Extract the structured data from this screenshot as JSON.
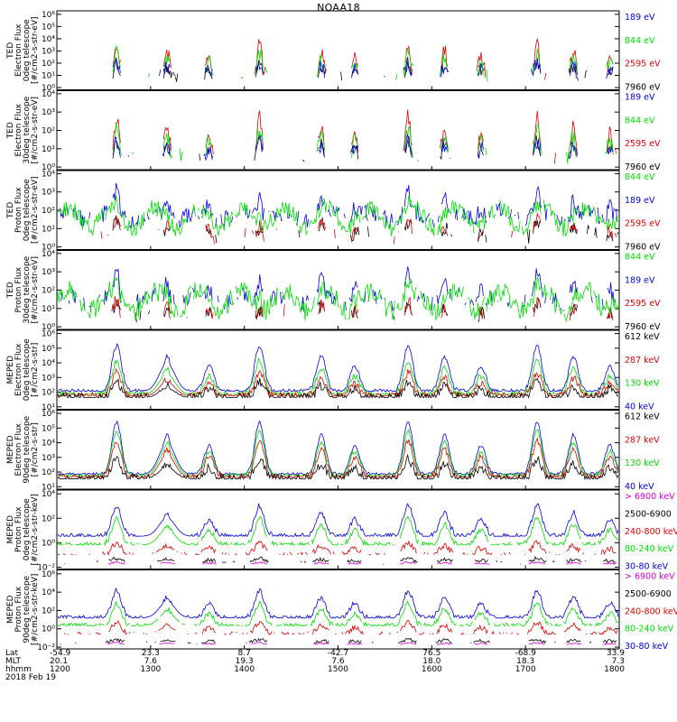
{
  "title": "NOAA18",
  "colors": {
    "black": "#000000",
    "red": "#e00000",
    "green": "#00e000",
    "blue": "#0000e0",
    "magenta": "#e000e0"
  },
  "chart_data": [
    {
      "type": "line",
      "panel": "TED electron 0deg",
      "ylabel": [
        "TED",
        "Electron Flux",
        "0deg telescope",
        "[#/cm2-s-str-eV]"
      ],
      "yticks": [
        "10⁰",
        "10¹",
        "10²",
        "10³",
        "10⁴",
        "10⁵",
        "10⁶"
      ],
      "ylog": [
        0,
        6
      ],
      "series": [
        {
          "name": "7960 eV",
          "color": "black",
          "baseline": 1.0,
          "amp": 1.0,
          "noise": 0.5,
          "density": 0.35
        },
        {
          "name": "2595 eV",
          "color": "red",
          "baseline": 1.0,
          "amp": 2.6,
          "noise": 0.6,
          "density": 0.3
        },
        {
          "name": "844 eV",
          "color": "green",
          "baseline": 1.0,
          "amp": 1.8,
          "noise": 0.6,
          "density": 0.3
        },
        {
          "name": "189 eV",
          "color": "blue",
          "baseline": 1.0,
          "amp": 1.0,
          "noise": 0.5,
          "density": 0.2
        }
      ]
    },
    {
      "type": "line",
      "panel": "TED electron 30deg",
      "ylabel": [
        "TED",
        "Electron Flux",
        "30deg telescope",
        "[#/cm2-s-str-eV]"
      ],
      "yticks": [
        "10⁰",
        "10¹",
        "10²",
        "10³",
        "10⁴"
      ],
      "ylog": [
        0,
        4.5
      ],
      "series": [
        {
          "name": "7960 eV",
          "color": "black",
          "baseline": 0.7,
          "amp": 1.0,
          "noise": 0.4,
          "density": 0.3
        },
        {
          "name": "2595 eV",
          "color": "red",
          "baseline": 0.7,
          "amp": 2.4,
          "noise": 0.5,
          "density": 0.3
        },
        {
          "name": "844 eV",
          "color": "green",
          "baseline": 0.7,
          "amp": 1.6,
          "noise": 0.5,
          "density": 0.3
        },
        {
          "name": "189 eV",
          "color": "blue",
          "baseline": 0.7,
          "amp": 1.0,
          "noise": 0.5,
          "density": 0.15
        }
      ]
    },
    {
      "type": "line",
      "panel": "TED proton 0deg",
      "ylabel": [
        "TED",
        "Proton Flux",
        "0deg telescope",
        "[#/cm2-s-str-eV]"
      ],
      "yticks": [
        "10⁰",
        "10¹",
        "10²",
        "10³",
        "10⁴"
      ],
      "ylog": [
        0,
        4.5
      ],
      "series": [
        {
          "name": "7960 eV",
          "color": "black",
          "baseline": 0.8,
          "amp": 0.6,
          "noise": 0.4,
          "density": 0.15
        },
        {
          "name": "2595 eV",
          "color": "red",
          "baseline": 0.8,
          "amp": 0.8,
          "noise": 0.4,
          "density": 0.15
        },
        {
          "name": "189 eV",
          "color": "blue",
          "baseline": 1.9,
          "amp": 1.3,
          "noise": 0.5,
          "density": 0.7
        },
        {
          "name": "844 eV",
          "color": "green",
          "baseline": 1.8,
          "amp": 0.5,
          "noise": 0.5,
          "density": 0.95
        }
      ]
    },
    {
      "type": "line",
      "panel": "TED proton 30deg",
      "ylabel": [
        "TED",
        "Proton Flux",
        "30deg telescope",
        "[#/cm2-s-str-eV]"
      ],
      "yticks": [
        "10⁰",
        "10¹",
        "10²",
        "10³",
        "10⁴"
      ],
      "ylog": [
        0,
        4.5
      ],
      "series": [
        {
          "name": "7960 eV",
          "color": "black",
          "baseline": 0.8,
          "amp": 0.5,
          "noise": 0.4,
          "density": 0.1
        },
        {
          "name": "2595 eV",
          "color": "red",
          "baseline": 0.8,
          "amp": 0.6,
          "noise": 0.4,
          "density": 0.1
        },
        {
          "name": "189 eV",
          "color": "blue",
          "baseline": 1.7,
          "amp": 1.4,
          "noise": 0.5,
          "density": 0.55
        },
        {
          "name": "844 eV",
          "color": "green",
          "baseline": 1.6,
          "amp": 0.7,
          "noise": 0.6,
          "density": 0.95
        }
      ]
    },
    {
      "type": "line",
      "panel": "MEPED electron 0deg",
      "ylabel": [
        "MEPED",
        "Electron Flux",
        "0deg telescope",
        "[#/cm2-s-str]"
      ],
      "yticks": [
        "10¹",
        "10²",
        "10³",
        "10⁴",
        "10⁵",
        "10⁶"
      ],
      "ylog": [
        1.5,
        6.5
      ],
      "series": [
        {
          "name": "40 keV",
          "color": "blue",
          "baseline": 2.6,
          "amp": 3.0,
          "noise": 0.15,
          "density": 1.0
        },
        {
          "name": "130 keV",
          "color": "green",
          "baseline": 2.4,
          "amp": 2.2,
          "noise": 0.2,
          "density": 1.0
        },
        {
          "name": "287 keV",
          "color": "red",
          "baseline": 2.3,
          "amp": 1.5,
          "noise": 0.25,
          "density": 1.0
        },
        {
          "name": "612 keV",
          "color": "black",
          "baseline": 2.2,
          "amp": 1.0,
          "noise": 0.3,
          "density": 1.0
        }
      ]
    },
    {
      "type": "line",
      "panel": "MEPED electron 90deg",
      "ylabel": [
        "MEPED",
        "Electron Flux",
        "90deg telescope",
        "[#/cm2-s-str]"
      ],
      "yticks": [
        "10¹",
        "10²",
        "10³",
        "10⁴",
        "10⁵",
        "10⁶"
      ],
      "ylog": [
        1.5,
        6.5
      ],
      "series": [
        {
          "name": "40 keV",
          "color": "blue",
          "baseline": 2.4,
          "amp": 3.4,
          "noise": 0.12,
          "density": 1.0
        },
        {
          "name": "130 keV",
          "color": "green",
          "baseline": 2.3,
          "amp": 2.9,
          "noise": 0.15,
          "density": 1.0
        },
        {
          "name": "287 keV",
          "color": "red",
          "baseline": 2.2,
          "amp": 2.4,
          "noise": 0.2,
          "density": 1.0
        },
        {
          "name": "612 keV",
          "color": "black",
          "baseline": 2.1,
          "amp": 1.3,
          "noise": 0.3,
          "density": 1.0
        }
      ]
    },
    {
      "type": "line",
      "panel": "MEPED proton 0deg",
      "ylabel": [
        "MEPED",
        "Proton Flux",
        "0deg telescope",
        "[#/cm2-s-str-keV]"
      ],
      "yticks": [
        "10⁻²",
        "10⁰",
        "10²",
        "10⁴"
      ],
      "ylog": [
        -3,
        5
      ],
      "series": [
        {
          "name": "30-80 keV",
          "color": "blue",
          "baseline": 0.3,
          "amp": 3.2,
          "noise": 0.3,
          "density": 1.0
        },
        {
          "name": "80-240 keV",
          "color": "green",
          "baseline": -0.6,
          "amp": 2.8,
          "noise": 0.3,
          "density": 0.9
        },
        {
          "name": "240-800 keV",
          "color": "red",
          "baseline": -1.6,
          "amp": 1.2,
          "noise": 0.3,
          "density": 0.5
        },
        {
          "name": "2500-6900",
          "color": "black",
          "baseline": -2.4,
          "amp": 0.4,
          "noise": 0.2,
          "density": 0.25
        },
        {
          "name": "> 6900 keV",
          "color": "magenta",
          "baseline": -2.6,
          "amp": 0.2,
          "noise": 0.1,
          "density": 0.1
        }
      ]
    },
    {
      "type": "line",
      "panel": "MEPED proton 90deg",
      "ylabel": [
        "MEPED",
        "Proton Flux",
        "90deg telescope",
        "[#/cm2-s-str-keV]"
      ],
      "yticks": [
        "10⁻²",
        "10⁰",
        "10²",
        "10⁴",
        "10⁶"
      ],
      "ylog": [
        -3,
        6
      ],
      "series": [
        {
          "name": "30-80 keV",
          "color": "blue",
          "baseline": 0.5,
          "amp": 3.2,
          "noise": 0.3,
          "density": 1.0
        },
        {
          "name": "80-240 keV",
          "color": "green",
          "baseline": -0.4,
          "amp": 2.6,
          "noise": 0.3,
          "density": 0.9
        },
        {
          "name": "240-800 keV",
          "color": "red",
          "baseline": -1.4,
          "amp": 1.4,
          "noise": 0.3,
          "density": 0.55
        },
        {
          "name": "2500-6900",
          "color": "black",
          "baseline": -2.4,
          "amp": 0.4,
          "noise": 0.2,
          "density": 0.25
        },
        {
          "name": "> 6900 keV",
          "color": "magenta",
          "baseline": -2.6,
          "amp": 0.2,
          "noise": 0.1,
          "density": 0.1
        }
      ]
    }
  ],
  "orbit_axis": {
    "rows": [
      "Lat",
      "MLT",
      "hhmm"
    ],
    "ticks": [
      {
        "lat": "-54.9",
        "mlt": "20.1",
        "hhmm": "1200"
      },
      {
        "lat": "23.3",
        "mlt": "7.6",
        "hhmm": "1300"
      },
      {
        "lat": "8.7",
        "mlt": "19.3",
        "hhmm": "1400"
      },
      {
        "lat": "-42.7",
        "mlt": "7.6",
        "hhmm": "1500"
      },
      {
        "lat": "76.5",
        "mlt": "18.0",
        "hhmm": "1600"
      },
      {
        "lat": "-68.9",
        "mlt": "18.3",
        "hhmm": "1700"
      },
      {
        "lat": "33.9",
        "mlt": "7.3",
        "hhmm": "1800"
      }
    ],
    "date": "2018 Feb 19"
  }
}
